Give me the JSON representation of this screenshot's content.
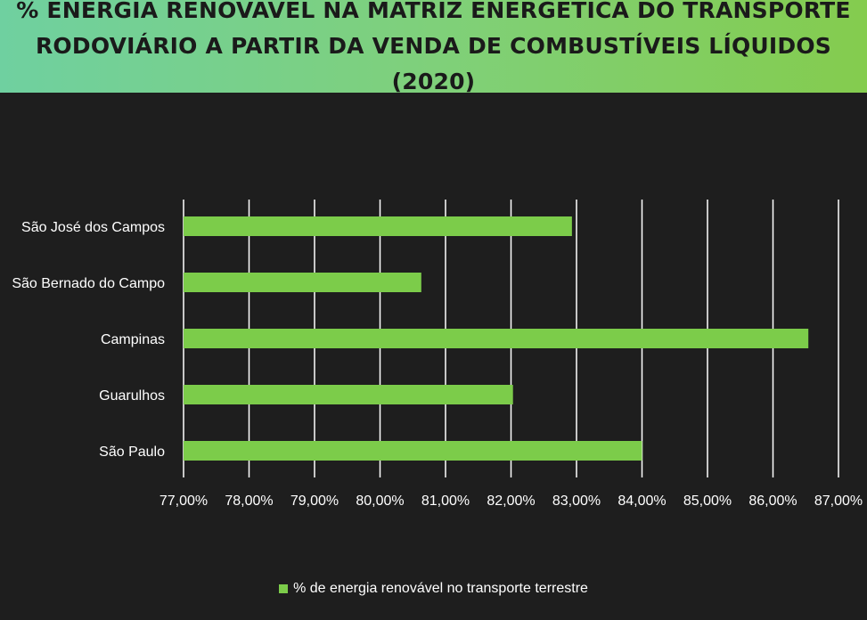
{
  "header": {
    "title_line1": "% ENERGIA RENOVÁVEL NA MATRIZ ENERGÉTICA DO TRANSPORTE",
    "title_line2": "RODOVIÁRIO A PARTIR DA VENDA DE COMBUSTÍVEIS LÍQUIDOS (2020)"
  },
  "legend": {
    "label": "% de energia renovável no transporte terrestre",
    "color": "#7ccc4a"
  },
  "colors": {
    "background": "#1e1e1e",
    "bar": "#7ccc4a",
    "grid": "#ffffff",
    "text": "#ffffff"
  },
  "chart_data": {
    "type": "bar",
    "orientation": "horizontal",
    "categories": [
      "São José dos Campos",
      "São Bernado do Campo",
      "Campinas",
      "Guarulhos",
      "São Paulo"
    ],
    "series": [
      {
        "name": "% de energia renovável no transporte terrestre",
        "values": [
          82.93,
          80.63,
          86.54,
          82.03,
          84.0
        ]
      }
    ],
    "xlim": [
      77,
      87
    ],
    "xticks": [
      "77,00%",
      "78,00%",
      "79,00%",
      "80,00%",
      "81,00%",
      "82,00%",
      "83,00%",
      "84,00%",
      "85,00%",
      "86,00%",
      "87,00%"
    ],
    "grid": "vertical",
    "legend_position": "bottom"
  }
}
